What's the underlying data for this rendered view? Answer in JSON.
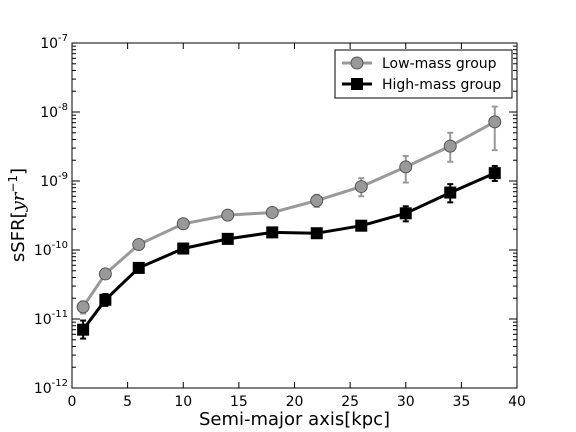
{
  "chart_data": {
    "type": "line",
    "title": "",
    "xlabel": "Semi-major axis[kpc]",
    "ylabel_main": "sSFR[",
    "ylabel_unit": "yr",
    "ylabel_exp": "−1",
    "ylabel_close": "]",
    "xlim": [
      0,
      40
    ],
    "ylim": [
      1e-12,
      1e-07
    ],
    "yscale": "log",
    "grid": false,
    "legend_position": "top-right",
    "x_ticks": [
      0,
      5,
      10,
      15,
      20,
      25,
      30,
      35,
      40
    ],
    "x_tick_labels": [
      "0",
      "5",
      "10",
      "15",
      "20",
      "25",
      "30",
      "35",
      "40"
    ],
    "y_tick_exponents": [
      -12,
      -11,
      -10,
      -9,
      -8,
      -7
    ],
    "y_tick_labels": [
      {
        "base": "10",
        "exp": "-12"
      },
      {
        "base": "10",
        "exp": "-11"
      },
      {
        "base": "10",
        "exp": "-10"
      },
      {
        "base": "10",
        "exp": "-9"
      },
      {
        "base": "10",
        "exp": "-8"
      },
      {
        "base": "10",
        "exp": "-7"
      }
    ],
    "series": [
      {
        "name": "Low-mass group",
        "color": "#999999",
        "marker": "circle",
        "x": [
          1,
          3,
          6,
          10,
          14,
          18,
          22,
          26,
          30,
          34,
          38
        ],
        "y": [
          1.5e-11,
          4.5e-11,
          1.2e-10,
          2.4e-10,
          3.2e-10,
          3.5e-10,
          5.2e-10,
          8.3e-10,
          1.6e-09,
          3.2e-09,
          7.2e-09
        ],
        "y_err_low": [
          1.2e-11,
          3.8e-11,
          1.05e-10,
          2.1e-10,
          2.8e-10,
          3.1e-10,
          4.2e-10,
          6e-10,
          9.5e-10,
          1.9e-09,
          2.8e-09
        ],
        "y_err_high": [
          1.8e-11,
          5.2e-11,
          1.35e-10,
          2.7e-10,
          3.6e-10,
          4e-10,
          6.3e-10,
          1.1e-09,
          2.3e-09,
          5e-09,
          1.2e-08
        ]
      },
      {
        "name": "High-mass group",
        "color": "#000000",
        "marker": "square",
        "x": [
          1,
          3,
          6,
          10,
          14,
          18,
          22,
          26,
          30,
          34,
          38
        ],
        "y": [
          7e-12,
          1.9e-11,
          5.5e-11,
          1.05e-10,
          1.45e-10,
          1.8e-10,
          1.75e-10,
          2.25e-10,
          3.4e-10,
          6.8e-10,
          1.3e-09
        ],
        "y_err_low": [
          5.2e-12,
          1.55e-11,
          5e-11,
          9.5e-11,
          1.3e-10,
          1.65e-10,
          1.6e-10,
          1.95e-10,
          2.6e-10,
          4.9e-10,
          1e-09
        ],
        "y_err_high": [
          9.5e-12,
          2.3e-11,
          6e-11,
          1.15e-10,
          1.6e-10,
          1.95e-10,
          1.9e-10,
          2.55e-10,
          4.3e-10,
          9e-10,
          1.65e-09
        ]
      }
    ]
  }
}
